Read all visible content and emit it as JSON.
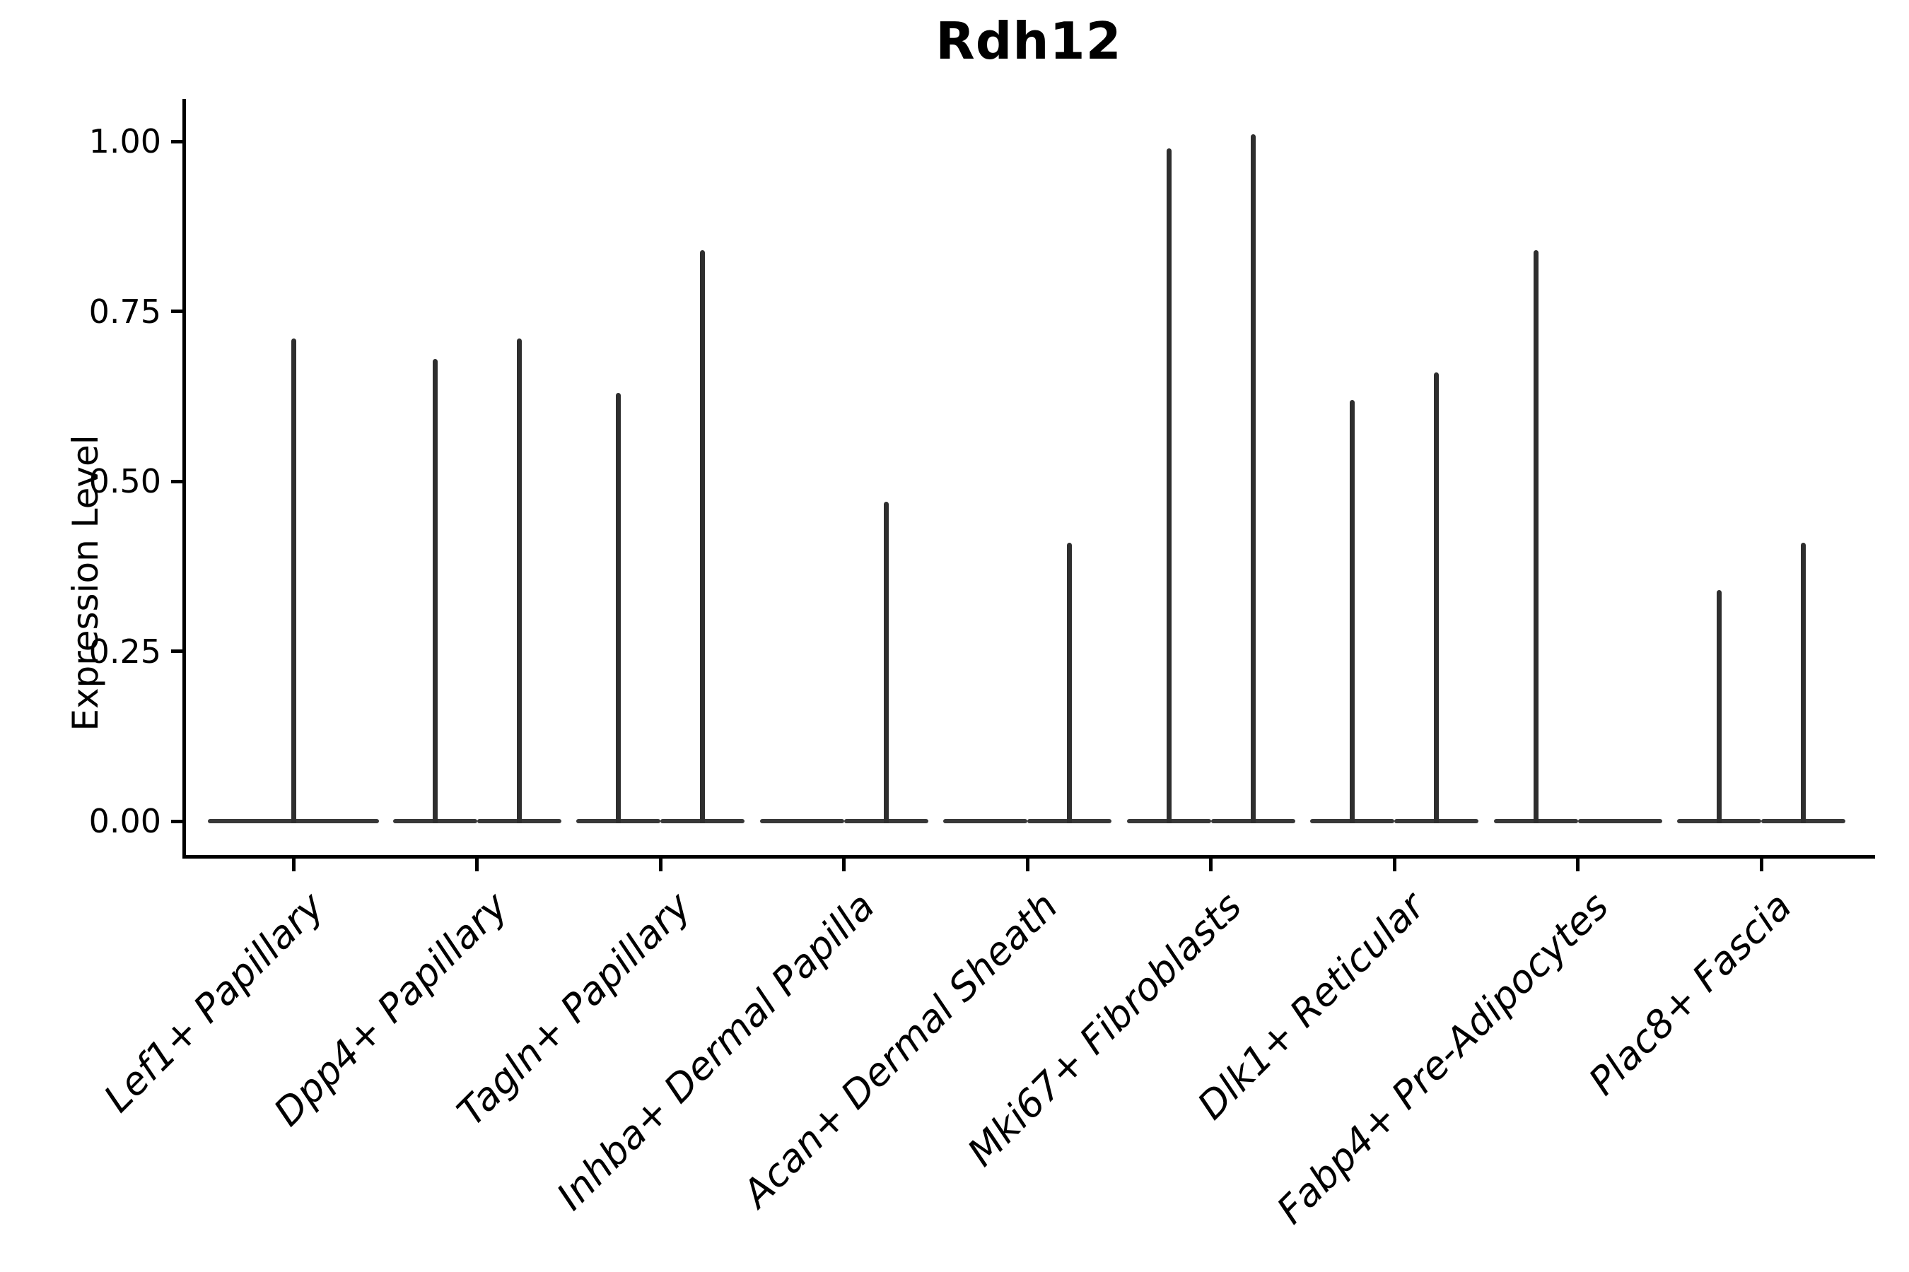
{
  "title": "Rdh12",
  "y_axis": {
    "label": "Expression Level",
    "ticks": [
      "0.00",
      "0.25",
      "0.50",
      "0.75",
      "1.00"
    ]
  },
  "chart_data": {
    "type": "violin",
    "title": "Rdh12",
    "xlabel": "",
    "ylabel": "Expression Level",
    "ylim": [
      0,
      1.06
    ],
    "y_tick_values": [
      0.0,
      0.25,
      0.5,
      0.75,
      1.0
    ],
    "grid": false,
    "legend": null,
    "categories": [
      "Lef1+ Papillary",
      "Dpp4+ Papillary",
      "Tagln+ Papillary",
      "Inhba+ Dermal Papilla",
      "Acan+ Dermal Sheath",
      "Mki67+ Fibroblasts",
      "Dlk1+ Reticular",
      "Fabp4+ Pre-Adipocytes",
      "Plac8+ Fascia"
    ],
    "violins": [
      [
        {
          "group": "center",
          "max": 0.71
        }
      ],
      [
        {
          "group": "left",
          "max": 0.68
        },
        {
          "group": "right",
          "max": 0.71
        }
      ],
      [
        {
          "group": "left",
          "max": 0.63
        },
        {
          "group": "right",
          "max": 0.84
        }
      ],
      [
        {
          "group": "left",
          "max": 0.0
        },
        {
          "group": "right",
          "max": 0.47
        }
      ],
      [
        {
          "group": "left",
          "max": 0.0
        },
        {
          "group": "right",
          "max": 0.41
        }
      ],
      [
        {
          "group": "left",
          "max": 0.99
        },
        {
          "group": "right",
          "max": 1.01
        }
      ],
      [
        {
          "group": "left",
          "max": 0.62
        },
        {
          "group": "right",
          "max": 0.66
        }
      ],
      [
        {
          "group": "left",
          "max": 0.84
        },
        {
          "group": "right",
          "max": 0.0
        }
      ],
      [
        {
          "group": "left",
          "max": 0.34
        },
        {
          "group": "right",
          "max": 0.41
        }
      ]
    ],
    "violin_shape_note": "Near-all-zero expression: each violin renders as a flat base line at 0 with a thin spike up to its max value; max 0 means base line only",
    "colors": {
      "line": "#2e2e2e",
      "base_line": "#383838",
      "axis": "#000000",
      "text": "#000000",
      "background": "#ffffff"
    }
  }
}
